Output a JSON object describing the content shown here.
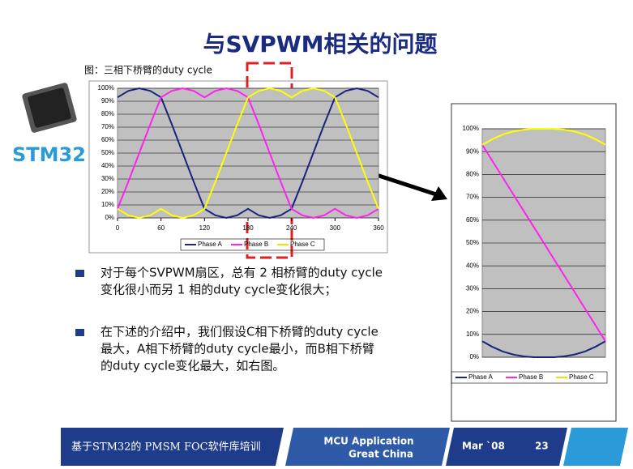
{
  "title": "与SVPWM相关的问题",
  "figure_caption": "图：三相下桥臂的duty cycle",
  "logo_text": "STM32",
  "bullets": [
    [
      "对于每个SVPWM扇区，总有 2 相桥臂的duty cycle",
      "变化很小而另 1 相的duty cycle变化很大；"
    ],
    [
      "在下述的介绍中，我们假设C相下桥臂的duty cycle",
      "最大，A相下桥臂的duty  cycle最小，而B相下桥臂",
      "的duty cycle变化最大，如右图。"
    ]
  ],
  "footer": {
    "course": "基于STM32的 PMSM FOC软件库培训",
    "dept": [
      "MCU Application",
      "Great China"
    ],
    "date": "Mar `08",
    "page": "23"
  },
  "chart_data": [
    {
      "type": "line",
      "x": [
        0,
        15,
        30,
        45,
        60,
        75,
        90,
        105,
        120,
        135,
        150,
        165,
        180,
        195,
        210,
        225,
        240,
        255,
        270,
        285,
        300,
        315,
        330,
        345,
        360
      ],
      "xlim": [
        0,
        360
      ],
      "xticks": [
        0,
        60,
        120,
        180,
        240,
        300,
        360
      ],
      "ylim": [
        0,
        100
      ],
      "yticks": [
        {
          "value": 0,
          "label": "0%"
        },
        {
          "value": 10,
          "label": "10%"
        },
        {
          "value": 20,
          "label": "20%"
        },
        {
          "value": 30,
          "label": "30%"
        },
        {
          "value": 40,
          "label": "40%"
        },
        {
          "value": 50,
          "label": "50%"
        },
        {
          "value": 60,
          "label": "60%"
        },
        {
          "value": 70,
          "label": "70%"
        },
        {
          "value": 80,
          "label": "80%"
        },
        {
          "value": 90,
          "label": "90%"
        },
        {
          "value": 100,
          "label": "100%"
        }
      ],
      "grid": true,
      "series": [
        {
          "name": "Phase A",
          "color": "#1a237e",
          "values": [
            93,
            98,
            100,
            98,
            93,
            72,
            50,
            28,
            7,
            2,
            0,
            2,
            7,
            2,
            0,
            2,
            7,
            28,
            50,
            72,
            93,
            98,
            100,
            98,
            93
          ]
        },
        {
          "name": "Phase B",
          "color": "#ff22ee",
          "values": [
            7,
            28,
            50,
            72,
            93,
            98,
            100,
            98,
            93,
            98,
            100,
            98,
            93,
            72,
            50,
            28,
            7,
            2,
            0,
            2,
            7,
            2,
            0,
            2,
            7
          ]
        },
        {
          "name": "Phase C",
          "color": "#ffff00",
          "values": [
            7,
            2,
            0,
            2,
            7,
            2,
            0,
            2,
            7,
            28,
            50,
            72,
            93,
            98,
            100,
            98,
            93,
            98,
            100,
            98,
            93,
            72,
            50,
            28,
            7
          ]
        }
      ]
    },
    {
      "type": "line",
      "categories": [
        null,
        null,
        null,
        null,
        null,
        null,
        null,
        null,
        null,
        null,
        null,
        null,
        null
      ],
      "ylim": [
        0,
        100
      ],
      "yticks": [
        {
          "value": 0,
          "label": "0%"
        },
        {
          "value": 10,
          "label": "10%"
        },
        {
          "value": 20,
          "label": "20%"
        },
        {
          "value": 30,
          "label": "30%"
        },
        {
          "value": 40,
          "label": "40%"
        },
        {
          "value": 50,
          "label": "50%"
        },
        {
          "value": 60,
          "label": "60%"
        },
        {
          "value": 70,
          "label": "70%"
        },
        {
          "value": 80,
          "label": "80%"
        },
        {
          "value": 90,
          "label": "90%"
        },
        {
          "value": 100,
          "label": "100%"
        }
      ],
      "grid": true,
      "series": [
        {
          "name": "Phase A",
          "color": "#1a237e",
          "values": [
            7,
            4.5,
            2.5,
            1.2,
            0.4,
            0,
            0,
            0,
            0.4,
            1.2,
            2.5,
            4.5,
            7
          ]
        },
        {
          "name": "Phase B",
          "color": "#ff22ee",
          "values": [
            93,
            85.8,
            78.7,
            71.5,
            64.3,
            57.2,
            50,
            42.8,
            35.7,
            28.5,
            21.3,
            14.2,
            7
          ]
        },
        {
          "name": "Phase C",
          "color": "#ffff00",
          "values": [
            93,
            95.5,
            97.5,
            98.8,
            99.6,
            100,
            100,
            100,
            99.6,
            98.8,
            97.5,
            95.5,
            93
          ]
        }
      ]
    }
  ]
}
